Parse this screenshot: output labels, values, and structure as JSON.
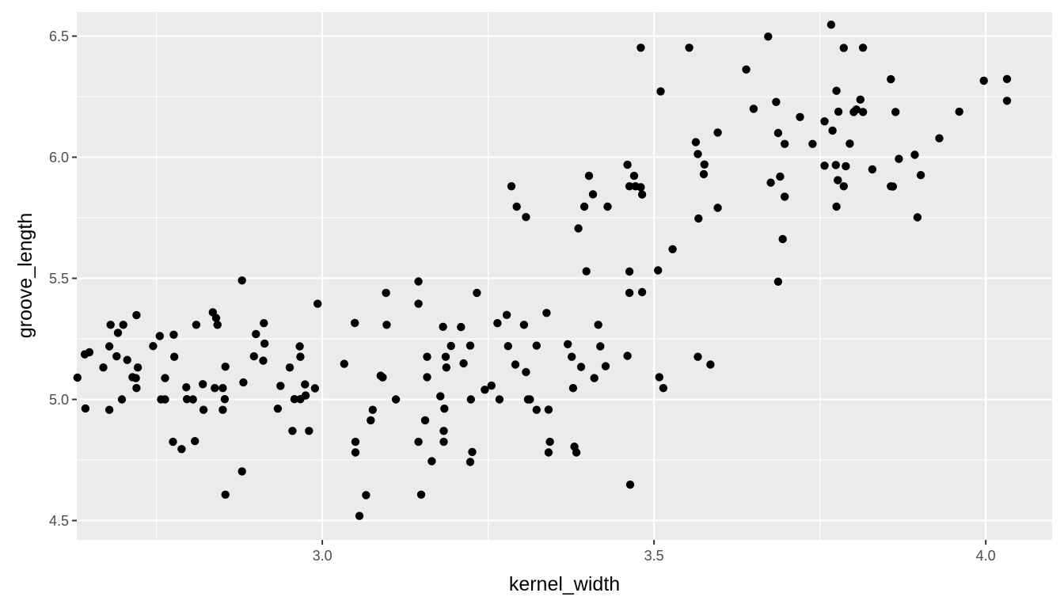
{
  "chart_data": {
    "type": "scatter",
    "title": "",
    "xlabel": "kernel_width",
    "ylabel": "groove_length",
    "xlim": [
      2.63,
      4.1
    ],
    "ylim": [
      4.42,
      6.6
    ],
    "x_ticks": [
      3.0,
      3.5,
      4.0
    ],
    "x_tick_labels": [
      "3.0",
      "3.5",
      "4.0"
    ],
    "y_ticks": [
      4.5,
      5.0,
      5.5,
      6.0,
      6.5
    ],
    "y_tick_labels": [
      "4.5",
      "5.0",
      "5.5",
      "6.0",
      "6.5"
    ],
    "grid": true,
    "legend": "none",
    "colors": {
      "panel": "#ebebeb",
      "grid": "#ffffff",
      "point": "#000000"
    },
    "points": [
      [
        2.631,
        5.09
      ],
      [
        2.642,
        5.186
      ],
      [
        2.643,
        4.963
      ],
      [
        2.649,
        5.195
      ],
      [
        2.67,
        5.132
      ],
      [
        2.679,
        5.219
      ],
      [
        2.681,
        5.308
      ],
      [
        2.679,
        4.957
      ],
      [
        2.69,
        5.178
      ],
      [
        2.692,
        5.275
      ],
      [
        2.698,
        5.0
      ],
      [
        2.7,
        5.308
      ],
      [
        2.706,
        5.163
      ],
      [
        2.714,
        5.092
      ],
      [
        2.719,
        5.088
      ],
      [
        2.72,
        5.047
      ],
      [
        2.72,
        5.348
      ],
      [
        2.722,
        5.132
      ],
      [
        2.745,
        5.22
      ],
      [
        2.755,
        5.262
      ],
      [
        2.757,
        5.0
      ],
      [
        2.763,
        5.088
      ],
      [
        2.763,
        5.0
      ],
      [
        2.775,
        4.825
      ],
      [
        2.776,
        5.267
      ],
      [
        2.777,
        5.176
      ],
      [
        2.788,
        4.795
      ],
      [
        2.795,
        5.05
      ],
      [
        2.796,
        5.001
      ],
      [
        2.805,
        5.0
      ],
      [
        2.808,
        4.828
      ],
      [
        2.81,
        5.308
      ],
      [
        2.82,
        5.063
      ],
      [
        2.821,
        4.957
      ],
      [
        2.835,
        5.36
      ],
      [
        2.838,
        5.047
      ],
      [
        2.84,
        5.336
      ],
      [
        2.842,
        5.308
      ],
      [
        2.85,
        4.957
      ],
      [
        2.85,
        5.047
      ],
      [
        2.853,
        5.001
      ],
      [
        2.854,
        5.135
      ],
      [
        2.854,
        4.607
      ],
      [
        2.879,
        4.703
      ],
      [
        2.879,
        5.491
      ],
      [
        2.881,
        5.07
      ],
      [
        2.897,
        5.178
      ],
      [
        2.9,
        5.27
      ],
      [
        2.911,
        5.16
      ],
      [
        2.912,
        5.315
      ],
      [
        2.913,
        5.231
      ],
      [
        2.933,
        4.962
      ],
      [
        2.937,
        5.056
      ],
      [
        2.951,
        5.132
      ],
      [
        2.955,
        4.87
      ],
      [
        2.958,
        5.001
      ],
      [
        2.966,
        5.219
      ],
      [
        2.967,
        5.001
      ],
      [
        2.967,
        5.176
      ],
      [
        2.974,
        5.062
      ],
      [
        2.975,
        5.016
      ],
      [
        2.98,
        4.87
      ],
      [
        2.989,
        5.046
      ],
      [
        2.993,
        5.395
      ],
      [
        3.033,
        5.147
      ],
      [
        3.049,
        5.316
      ],
      [
        3.05,
        4.825
      ],
      [
        3.05,
        4.781
      ],
      [
        3.056,
        4.519
      ],
      [
        3.066,
        4.605
      ],
      [
        3.073,
        4.914
      ],
      [
        3.076,
        4.957
      ],
      [
        3.088,
        5.098
      ],
      [
        3.091,
        5.091
      ],
      [
        3.096,
        5.44
      ],
      [
        3.097,
        5.308
      ],
      [
        3.111,
        5.0
      ],
      [
        3.145,
        5.395
      ],
      [
        3.145,
        5.487
      ],
      [
        3.145,
        4.825
      ],
      [
        3.149,
        4.607
      ],
      [
        3.155,
        4.914
      ],
      [
        3.158,
        5.176
      ],
      [
        3.158,
        5.092
      ],
      [
        3.165,
        4.745
      ],
      [
        3.178,
        5.013
      ],
      [
        3.182,
        5.3
      ],
      [
        3.183,
        4.825
      ],
      [
        3.183,
        4.87
      ],
      [
        3.184,
        4.962
      ],
      [
        3.186,
        5.176
      ],
      [
        3.187,
        5.132
      ],
      [
        3.194,
        5.221
      ],
      [
        3.209,
        5.299
      ],
      [
        3.213,
        5.149
      ],
      [
        3.223,
        5.222
      ],
      [
        3.223,
        4.742
      ],
      [
        3.226,
        4.783
      ],
      [
        3.224,
        5.0
      ],
      [
        3.233,
        5.44
      ],
      [
        3.245,
        5.04
      ],
      [
        3.255,
        5.057
      ],
      [
        3.264,
        5.315
      ],
      [
        3.267,
        5.0
      ],
      [
        3.278,
        5.349
      ],
      [
        3.28,
        5.22
      ],
      [
        3.285,
        5.88
      ],
      [
        3.291,
        5.144
      ],
      [
        3.293,
        5.796
      ],
      [
        3.304,
        5.308
      ],
      [
        3.307,
        5.753
      ],
      [
        3.307,
        5.113
      ],
      [
        3.31,
        5.0
      ],
      [
        3.313,
        5.0
      ],
      [
        3.323,
        5.222
      ],
      [
        3.323,
        4.957
      ],
      [
        3.338,
        5.357
      ],
      [
        3.341,
        4.958
      ],
      [
        3.341,
        4.781
      ],
      [
        3.343,
        4.825
      ],
      [
        3.37,
        5.228
      ],
      [
        3.376,
        5.176
      ],
      [
        3.378,
        5.047
      ],
      [
        3.38,
        4.805
      ],
      [
        3.383,
        4.781
      ],
      [
        3.386,
        5.706
      ],
      [
        3.39,
        5.134
      ],
      [
        3.395,
        5.796
      ],
      [
        3.398,
        5.529
      ],
      [
        3.402,
        5.923
      ],
      [
        3.408,
        5.847
      ],
      [
        3.41,
        5.088
      ],
      [
        3.416,
        5.308
      ],
      [
        3.419,
        5.219
      ],
      [
        3.427,
        5.137
      ],
      [
        3.43,
        5.796
      ],
      [
        3.46,
        5.969
      ],
      [
        3.46,
        5.18
      ],
      [
        3.463,
        5.528
      ],
      [
        3.463,
        5.44
      ],
      [
        3.464,
        4.648
      ],
      [
        3.463,
        5.88
      ],
      [
        3.47,
        5.923
      ],
      [
        3.472,
        5.88
      ],
      [
        3.48,
        5.876
      ],
      [
        3.48,
        6.452
      ],
      [
        3.482,
        5.846
      ],
      [
        3.482,
        5.443
      ],
      [
        3.506,
        5.533
      ],
      [
        3.508,
        5.092
      ],
      [
        3.51,
        6.272
      ],
      [
        3.514,
        5.047
      ],
      [
        3.528,
        5.62
      ],
      [
        3.553,
        6.452
      ],
      [
        3.563,
        6.062
      ],
      [
        3.566,
        6.013
      ],
      [
        3.566,
        5.176
      ],
      [
        3.567,
        5.747
      ],
      [
        3.575,
        5.93
      ],
      [
        3.576,
        5.97
      ],
      [
        3.585,
        5.144
      ],
      [
        3.596,
        6.102
      ],
      [
        3.596,
        5.791
      ],
      [
        3.639,
        6.362
      ],
      [
        3.65,
        6.2
      ],
      [
        3.672,
        6.498
      ],
      [
        3.676,
        5.895
      ],
      [
        3.684,
        6.228
      ],
      [
        3.687,
        5.486
      ],
      [
        3.687,
        6.1
      ],
      [
        3.69,
        5.92
      ],
      [
        3.694,
        5.662
      ],
      [
        3.697,
        6.055
      ],
      [
        3.697,
        5.837
      ],
      [
        3.72,
        6.166
      ],
      [
        3.739,
        6.055
      ],
      [
        3.757,
        6.148
      ],
      [
        3.757,
        5.965
      ],
      [
        3.767,
        6.547
      ],
      [
        3.769,
        6.11
      ],
      [
        3.774,
        5.968
      ],
      [
        3.775,
        5.796
      ],
      [
        3.775,
        6.274
      ],
      [
        3.777,
        5.905
      ],
      [
        3.778,
        6.188
      ],
      [
        3.786,
        6.451
      ],
      [
        3.786,
        5.88
      ],
      [
        3.789,
        5.963
      ],
      [
        3.795,
        6.056
      ],
      [
        3.801,
        6.187
      ],
      [
        3.805,
        6.197
      ],
      [
        3.811,
        6.238
      ],
      [
        3.815,
        6.452
      ],
      [
        3.815,
        6.187
      ],
      [
        3.829,
        5.95
      ],
      [
        3.857,
        6.322
      ],
      [
        3.857,
        5.88
      ],
      [
        3.86,
        5.879
      ],
      [
        3.864,
        6.187
      ],
      [
        3.869,
        5.993
      ],
      [
        3.893,
        6.01
      ],
      [
        3.897,
        5.752
      ],
      [
        3.902,
        5.926
      ],
      [
        3.93,
        6.078
      ],
      [
        3.96,
        6.188
      ],
      [
        3.997,
        6.316
      ],
      [
        4.032,
        6.323
      ],
      [
        4.032,
        6.233
      ]
    ]
  }
}
